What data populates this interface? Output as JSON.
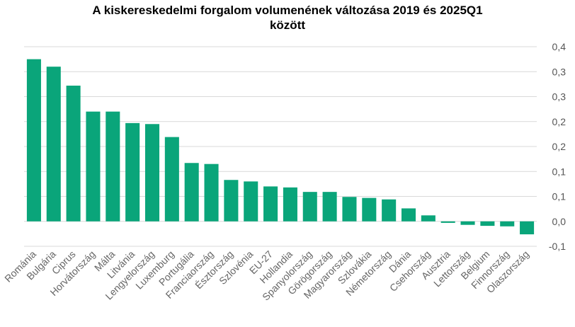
{
  "chart_data": {
    "type": "bar",
    "title_line1": "A kiskereskedelmi forgalom volumenének változása 2019 és 2025Q1",
    "title_line2": "között",
    "categories": [
      "Románia",
      "Bulgária",
      "Ciprus",
      "Horvátország",
      "Málta",
      "Litvánia",
      "Lengyelország",
      "Luxemburg",
      "Portugália",
      "Franciaország",
      "Észtország",
      "Szlovénia",
      "EU-27",
      "Hollandia",
      "Spanyolország",
      "Görögország",
      "Magyarország",
      "Szlovákia",
      "Németország",
      "Dánia",
      "Csehország",
      "Ausztria",
      "Lettország",
      "Belgium",
      "Finnország",
      "Olaszország"
    ],
    "values": [
      0.325,
      0.31,
      0.272,
      0.22,
      0.22,
      0.197,
      0.195,
      0.169,
      0.117,
      0.115,
      0.083,
      0.08,
      0.07,
      0.068,
      0.059,
      0.059,
      0.049,
      0.047,
      0.044,
      0.026,
      0.012,
      -0.003,
      -0.007,
      -0.009,
      -0.01,
      -0.026
    ],
    "ylim": [
      -0.05,
      0.35
    ],
    "yticks": [
      {
        "value": -0.05,
        "label": "-0,1"
      },
      {
        "value": 0.0,
        "label": "0,0"
      },
      {
        "value": 0.05,
        "label": "0,1"
      },
      {
        "value": 0.1,
        "label": "0,1"
      },
      {
        "value": 0.15,
        "label": "0,2"
      },
      {
        "value": 0.2,
        "label": "0,2"
      },
      {
        "value": 0.25,
        "label": "0,3"
      },
      {
        "value": 0.3,
        "label": "0,3"
      },
      {
        "value": 0.35,
        "label": "0,4"
      }
    ],
    "grid": true,
    "colors": {
      "bar": "#0aa57a",
      "grid": "#d9d9d9",
      "axis": "#cccccc"
    }
  }
}
